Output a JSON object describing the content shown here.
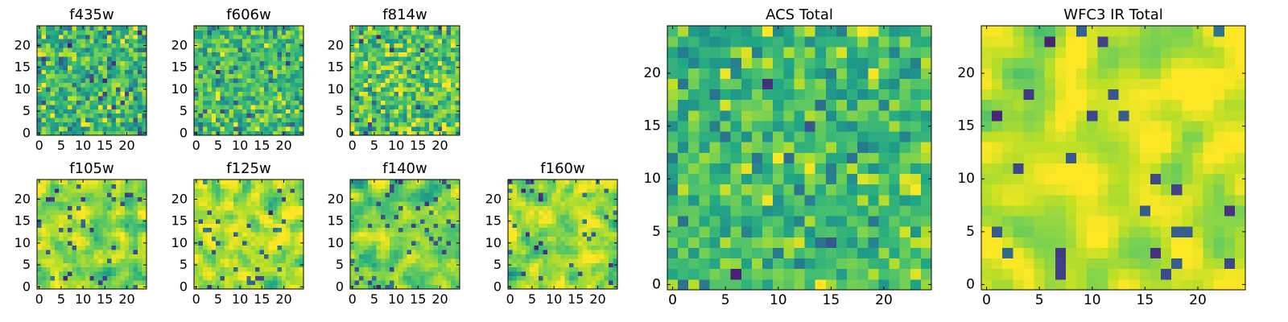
{
  "chart_data": [
    {
      "type": "heatmap",
      "title": "f435w",
      "xlabel": "",
      "ylabel": "",
      "xlim": [
        -0.5,
        24.5
      ],
      "ylim": [
        -0.5,
        24.5
      ],
      "x_ticks": [
        0,
        5,
        10,
        15,
        20
      ],
      "y_ticks": [
        0,
        5,
        10,
        15,
        20
      ],
      "grid_size": 25,
      "colormap": "viridis",
      "seed": 11,
      "smooth": 0,
      "low_quantile": 0.06
    },
    {
      "type": "heatmap",
      "title": "f606w",
      "xlabel": "",
      "ylabel": "",
      "xlim": [
        -0.5,
        24.5
      ],
      "ylim": [
        -0.5,
        24.5
      ],
      "x_ticks": [
        0,
        5,
        10,
        15,
        20
      ],
      "y_ticks": [
        0,
        5,
        10,
        15,
        20
      ],
      "grid_size": 25,
      "colormap": "viridis",
      "seed": 23,
      "smooth": 0,
      "low_quantile": 0.05
    },
    {
      "type": "heatmap",
      "title": "f814w",
      "xlabel": "",
      "ylabel": "",
      "xlim": [
        -0.5,
        24.5
      ],
      "ylim": [
        -0.5,
        24.5
      ],
      "x_ticks": [
        0,
        5,
        10,
        15,
        20
      ],
      "y_ticks": [
        0,
        5,
        10,
        15,
        20
      ],
      "grid_size": 25,
      "colormap": "viridis",
      "seed": 37,
      "smooth": 0,
      "low_quantile": 0.05
    },
    {
      "type": "heatmap",
      "title": "f105w",
      "xlabel": "",
      "ylabel": "",
      "xlim": [
        -0.5,
        24.5
      ],
      "ylim": [
        -0.5,
        24.5
      ],
      "x_ticks": [
        0,
        5,
        10,
        15,
        20
      ],
      "y_ticks": [
        0,
        5,
        10,
        15,
        20
      ],
      "grid_size": 25,
      "colormap": "viridis",
      "seed": 41,
      "smooth": 1,
      "low_quantile": 0.05
    },
    {
      "type": "heatmap",
      "title": "f125w",
      "xlabel": "",
      "ylabel": "",
      "xlim": [
        -0.5,
        24.5
      ],
      "ylim": [
        -0.5,
        24.5
      ],
      "x_ticks": [
        0,
        5,
        10,
        15,
        20
      ],
      "y_ticks": [
        0,
        5,
        10,
        15,
        20
      ],
      "grid_size": 25,
      "colormap": "viridis",
      "seed": 53,
      "smooth": 1,
      "low_quantile": 0.06
    },
    {
      "type": "heatmap",
      "title": "f140w",
      "xlabel": "",
      "ylabel": "",
      "xlim": [
        -0.5,
        24.5
      ],
      "ylim": [
        -0.5,
        24.5
      ],
      "x_ticks": [
        0,
        5,
        10,
        15,
        20
      ],
      "y_ticks": [
        0,
        5,
        10,
        15,
        20
      ],
      "grid_size": 25,
      "colormap": "viridis",
      "seed": 67,
      "smooth": 1,
      "low_quantile": 0.06
    },
    {
      "type": "heatmap",
      "title": "f160w",
      "xlabel": "",
      "ylabel": "",
      "xlim": [
        -0.5,
        24.5
      ],
      "ylim": [
        -0.5,
        24.5
      ],
      "x_ticks": [
        0,
        5,
        10,
        15,
        20
      ],
      "y_ticks": [
        0,
        5,
        10,
        15,
        20
      ],
      "grid_size": 25,
      "colormap": "viridis",
      "seed": 79,
      "smooth": 1,
      "low_quantile": 0.05
    },
    {
      "type": "heatmap",
      "title": "ACS Total",
      "xlabel": "",
      "ylabel": "",
      "xlim": [
        -0.5,
        24.5
      ],
      "ylim": [
        -0.5,
        24.5
      ],
      "x_ticks": [
        0,
        5,
        10,
        15,
        20
      ],
      "y_ticks": [
        0,
        5,
        10,
        15,
        20
      ],
      "grid_size": 25,
      "colormap": "viridis",
      "seed": 97,
      "smooth": 0,
      "low_quantile": 0.025
    },
    {
      "type": "heatmap",
      "title": "WFC3 IR Total",
      "xlabel": "",
      "ylabel": "",
      "xlim": [
        -0.5,
        24.5
      ],
      "ylim": [
        -0.5,
        24.5
      ],
      "x_ticks": [
        0,
        5,
        10,
        15,
        20
      ],
      "y_ticks": [
        0,
        5,
        10,
        15,
        20
      ],
      "grid_size": 25,
      "colormap": "viridis",
      "seed": 131,
      "smooth": 2,
      "low_quantile": 0.04
    }
  ]
}
